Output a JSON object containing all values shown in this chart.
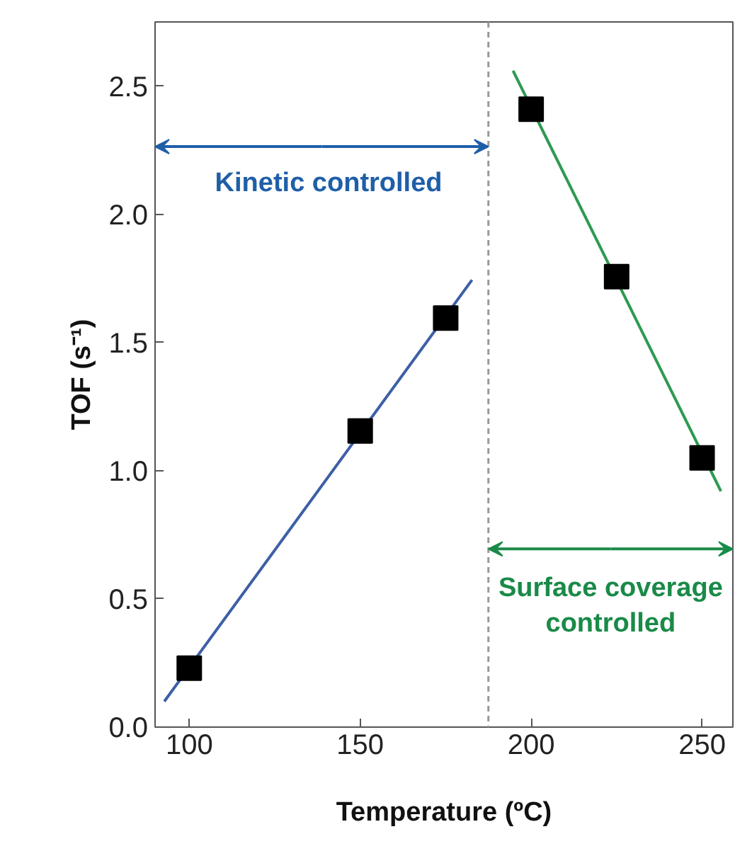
{
  "chart_data": {
    "type": "scatter",
    "xlabel": "Temperature (ºC)",
    "ylabel": "TOF (s⁻¹)",
    "xlim": [
      90,
      259
    ],
    "ylim": [
      0,
      2.75
    ],
    "xticks": [
      100,
      150,
      200,
      250
    ],
    "yticks": [
      {
        "value": 0,
        "label": "0.0"
      },
      {
        "value": 0.5,
        "label": "0.5"
      },
      {
        "value": 1,
        "label": "1.0"
      },
      {
        "value": 1.5,
        "label": "1.5"
      },
      {
        "value": 2,
        "label": "2.0"
      },
      {
        "value": 2.5,
        "label": "2.5"
      }
    ],
    "series": [
      {
        "type": "line",
        "marker": "none",
        "color": "#3d5fa6",
        "x": [
          92.7,
          182.7
        ],
        "values": [
          0.1,
          1.744
        ]
      },
      {
        "type": "line",
        "marker": "none",
        "color": "#2e9a52",
        "x": [
          194.7,
          255.5
        ],
        "values": [
          2.56,
          0.92
        ]
      },
      {
        "color": "#000000",
        "x": [
          100,
          150,
          175,
          200,
          225,
          250
        ],
        "values": [
          0.23,
          1.155,
          1.595,
          2.41,
          1.757,
          1.05
        ]
      }
    ],
    "marker": "square",
    "grid": false,
    "ref_lines": [
      {
        "axis": "x",
        "value": 187.5,
        "color": "#999999",
        "line_style": "dashed"
      }
    ],
    "annotations": [
      {
        "text": "Kinetic controlled",
        "x": 187.5,
        "y": 2.264
      },
      {
        "text": "Surface coverage\ncontrolled",
        "x": 187.5,
        "y": 0.695
      }
    ]
  }
}
